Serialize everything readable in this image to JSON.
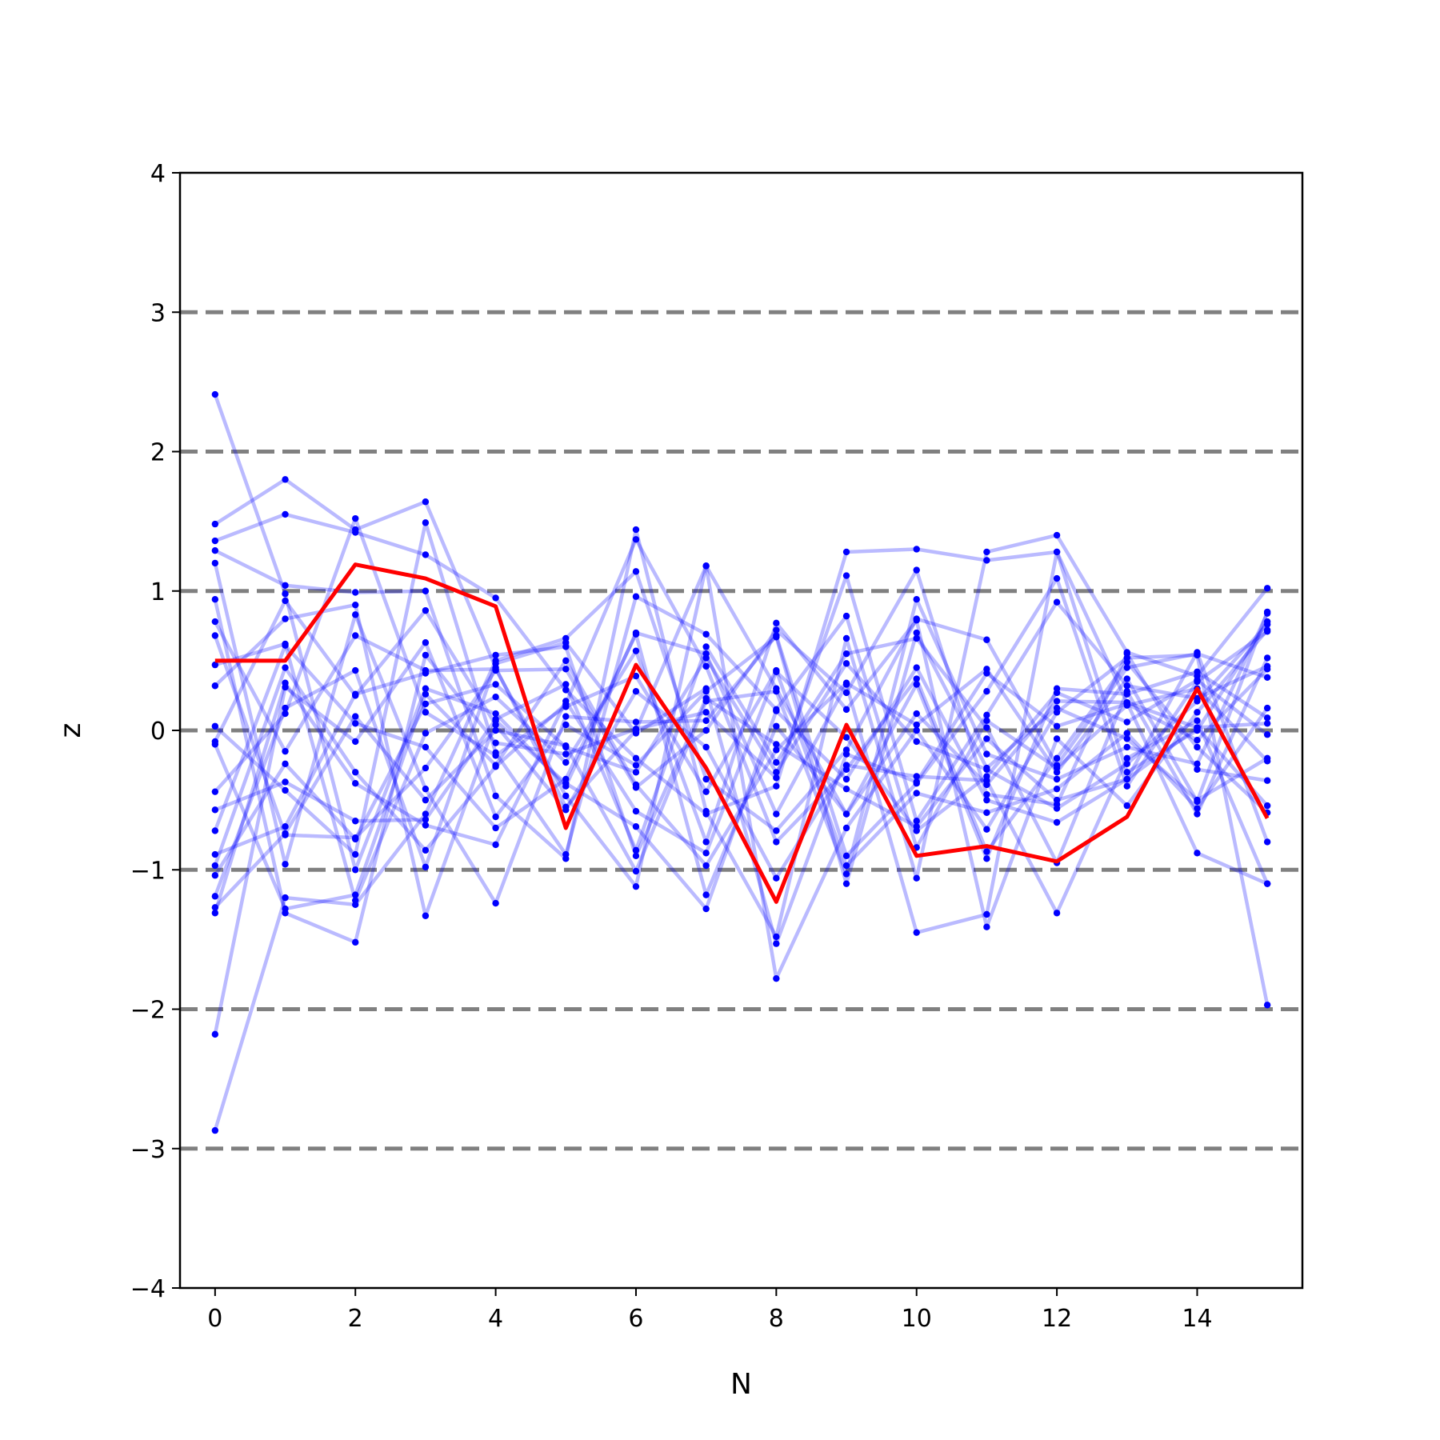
{
  "chart_data": {
    "type": "line",
    "xlabel": "N",
    "ylabel": "z",
    "xlim": [
      -0.5,
      15.5
    ],
    "ylim": [
      -4,
      4
    ],
    "xticks": [
      0,
      2,
      4,
      6,
      8,
      10,
      12,
      14
    ],
    "yticks": [
      -4,
      -3,
      -2,
      -1,
      0,
      1,
      2,
      3,
      4
    ],
    "xtick_labels": [
      "0",
      "2",
      "4",
      "6",
      "8",
      "10",
      "12",
      "14"
    ],
    "ytick_labels": [
      "−4",
      "−3",
      "−2",
      "−1",
      "0",
      "1",
      "2",
      "3",
      "4"
    ],
    "reference_lines": [
      -3,
      -2,
      -1,
      0,
      1,
      2,
      3
    ],
    "reference_line_color": "#808080",
    "background_series_color": "#0000ff",
    "highlight_color": "#ff0000",
    "x": [
      0,
      1,
      2,
      3,
      4,
      5,
      6,
      7,
      8,
      9,
      10,
      11,
      12,
      13,
      14,
      15
    ],
    "highlight": [
      0.5,
      0.5,
      1.19,
      1.09,
      0.89,
      -0.7,
      0.47,
      -0.27,
      -1.23,
      0.04,
      -0.9,
      -0.83,
      -0.94,
      -0.62,
      0.3,
      -0.63
    ],
    "series": [
      {
        "values": [
          2.41,
          0.98,
          -1.0,
          0.3,
          0.12,
          -0.4,
          0.7,
          0.55,
          -0.6,
          0.33,
          -1.45,
          -1.32,
          1.28,
          0.2,
          -0.88,
          -1.1
        ]
      },
      {
        "values": [
          -2.87,
          -1.2,
          -1.25,
          -0.6,
          0.5,
          0.66,
          1.14,
          -0.35,
          -0.72,
          -0.14,
          0.8,
          0.65,
          -0.25,
          0.45,
          0.55,
          0.38
        ]
      },
      {
        "values": [
          -2.18,
          0.31,
          -0.08,
          0.63,
          -0.62,
          0.04,
          -0.25,
          0.28,
          0.67,
          -1.1,
          0.7,
          -0.27,
          0.16,
          -0.06,
          -0.5,
          -0.2
        ]
      },
      {
        "values": [
          1.48,
          1.8,
          1.44,
          1.64,
          0.45,
          -0.55,
          0.0,
          1.18,
          -1.78,
          -0.7,
          0.0,
          -0.71,
          0.13,
          0.52,
          0.54,
          -1.97
        ]
      },
      {
        "values": [
          1.36,
          1.55,
          1.42,
          1.26,
          0.95,
          0.29,
          -0.2,
          -0.6,
          -0.4,
          1.28,
          1.3,
          1.22,
          1.28,
          -0.3,
          0.0,
          0.78
        ]
      },
      {
        "values": [
          1.29,
          1.04,
          0.99,
          1.0,
          -0.47,
          -0.92,
          1.44,
          -0.58,
          -1.48,
          0.66,
          -1.06,
          1.28,
          1.4,
          0.56,
          0.39,
          1.02
        ]
      },
      {
        "values": [
          1.2,
          -0.96,
          0.83,
          -0.42,
          -1.24,
          0.1,
          0.06,
          0.07,
          0.68,
          -0.9,
          -0.38,
          0.28,
          1.09,
          -0.4,
          0.35,
          0.71
        ]
      },
      {
        "values": [
          0.94,
          -1.31,
          -1.52,
          0.54,
          -0.09,
          -0.17,
          0.01,
          0.13,
          -0.34,
          1.11,
          -0.65,
          0.11,
          0.92,
          0.32,
          0.23,
          0.46
        ]
      },
      {
        "values": [
          0.78,
          -0.15,
          0.68,
          0.43,
          0.44,
          -0.47,
          -1.12,
          1.18,
          0.3,
          -0.6,
          0.33,
          -0.92,
          0.3,
          0.26,
          0.42,
          0.09
        ]
      },
      {
        "values": [
          0.68,
          -0.75,
          -0.77,
          -0.27,
          0.43,
          0.44,
          -0.41,
          0.0,
          0.72,
          0.27,
          1.15,
          -0.46,
          -0.53,
          0.55,
          -0.28,
          -0.36
        ]
      },
      {
        "values": [
          0.47,
          0.62,
          -1.22,
          -0.02,
          0.24,
          -0.23,
          0.57,
          -0.8,
          0.77,
          0.15,
          0.79,
          -1.41,
          -0.06,
          -0.54,
          0.13,
          0.72
        ]
      },
      {
        "values": [
          0.32,
          0.8,
          0.9,
          -1.33,
          0.07,
          -0.38,
          -0.69,
          -1.28,
          0.14,
          -0.35,
          0.45,
          -0.5,
          -0.66,
          -0.35,
          0.02,
          -0.54
        ]
      },
      {
        "values": [
          0.03,
          -0.43,
          -0.89,
          1.49,
          -0.16,
          -0.89,
          0.96,
          0.69,
          0.15,
          0.82,
          -0.84,
          0.07,
          -0.27,
          0.18,
          0.3,
          -0.22
        ]
      },
      {
        "values": [
          -0.08,
          0.93,
          0.25,
          0.86,
          0.04,
          -0.57,
          0.28,
          -0.12,
          -1.06,
          -0.25,
          -0.33,
          -0.36,
          -1.31,
          -0.2,
          0.07,
          -1.1
        ]
      },
      {
        "values": [
          -0.1,
          -1.28,
          -1.18,
          0.26,
          -0.25,
          0.5,
          -0.39,
          -0.97,
          -0.14,
          0.34,
          0.04,
          0.44,
          -0.3,
          0.37,
          -0.51,
          0.85
        ]
      },
      {
        "values": [
          -0.44,
          0.12,
          1.52,
          0.13,
          -0.18,
          0.17,
          0.39,
          -0.44,
          0.43,
          -0.97,
          -0.45,
          -0.59,
          -0.42,
          -0.02,
          -0.56,
          0.16
        ]
      },
      {
        "values": [
          -0.57,
          -0.37,
          -0.65,
          -0.64,
          0.08,
          0.33,
          -0.86,
          0.6,
          -0.23,
          0.55,
          0.66,
          0.02,
          -0.95,
          0.28,
          -0.6,
          0.52
        ]
      },
      {
        "values": [
          -0.72,
          0.61,
          0.05,
          -0.12,
          -0.7,
          -0.35,
          0.69,
          -1.18,
          0.03,
          -0.6,
          0.12,
          -0.39,
          0.21,
          0.2,
          0.02,
          0.05
        ]
      },
      {
        "values": [
          -0.89,
          -0.69,
          0.26,
          0.41,
          0.54,
          0.6,
          -0.9,
          0.23,
          -0.1,
          -0.42,
          -0.69,
          -0.06,
          -0.5,
          -0.35,
          0.56,
          -0.8
        ]
      },
      {
        "values": [
          -0.97,
          0.45,
          -0.3,
          -0.86,
          -0.26,
          0.19,
          1.37,
          0.46,
          -0.8,
          -0.28,
          0.37,
          -0.87,
          -0.2,
          0.49,
          -0.12,
          -0.59
        ]
      },
      {
        "values": [
          -1.04,
          -0.24,
          -0.78,
          0.19,
          0.33,
          -0.12,
          -0.3,
          0.52,
          -0.3,
          0.48,
          -0.08,
          -0.28,
          -0.56,
          -0.24,
          0.21,
          0.76
        ]
      },
      {
        "values": [
          -1.19,
          0.16,
          0.43,
          -0.98,
          0.48,
          0.63,
          -0.02,
          0.3,
          -1.53,
          -0.17,
          -0.37,
          0.41,
          0.03,
          0.19,
          -0.07,
          0.44
        ]
      },
      {
        "values": [
          -1.27,
          -0.74,
          0.1,
          -0.5,
          0.0,
          -0.11,
          -1.01,
          0.21,
          0.28,
          -1.03,
          0.94,
          -0.17,
          -0.35,
          -0.12,
          -0.24,
          0.84
        ]
      },
      {
        "values": [
          -1.31,
          0.34,
          -0.38,
          -0.68,
          -0.82,
          0.21,
          -0.58,
          -0.88,
          0.42,
          -0.05,
          -0.72,
          -0.33,
          0.27,
          0.06,
          0.36,
          -0.03
        ]
      }
    ]
  }
}
